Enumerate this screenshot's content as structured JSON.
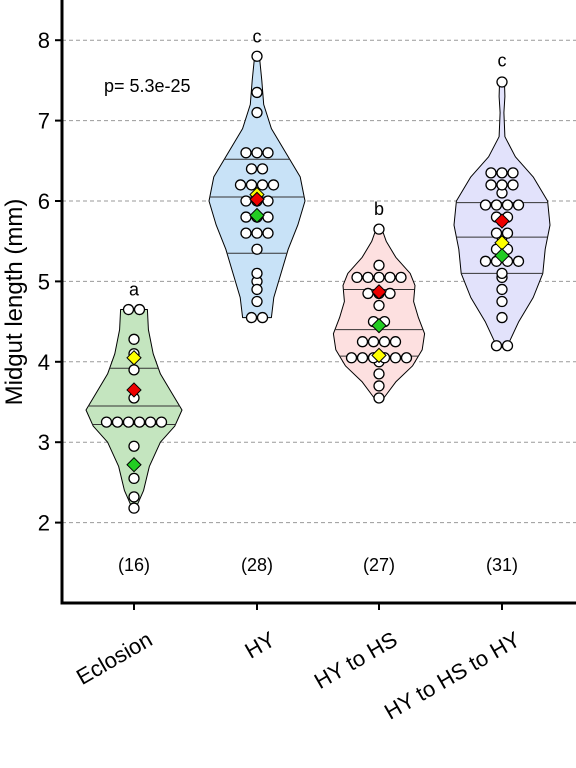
{
  "chart_data": {
    "type": "violin",
    "ylabel": "Midgut length (mm)",
    "xlabel": "",
    "ylim": [
      1.0,
      8.5
    ],
    "yticks": [
      2,
      3,
      4,
      5,
      6,
      7,
      8
    ],
    "grid": "horizontal dashed",
    "annotation": "p= 5.3e-25",
    "marker_colors": {
      "red": "#ee0000",
      "green": "#22cc22",
      "yellow": "#ffff00"
    },
    "groups": [
      {
        "label": "Eclosion",
        "n_label": "(16)",
        "letter": "a",
        "fill": "#c4e5bf",
        "range": [
          2.18,
          4.65
        ],
        "quantiles": [
          3.22,
          3.45,
          3.92
        ],
        "red": 3.65,
        "green": 2.72,
        "yellow": 4.05,
        "points": [
          2.18,
          2.32,
          2.55,
          2.95,
          3.25,
          3.25,
          3.25,
          3.25,
          3.25,
          3.25,
          3.55,
          3.9,
          4.1,
          4.28,
          4.65,
          4.65
        ],
        "shape": [
          [
            2.18,
            0.04
          ],
          [
            2.4,
            0.2
          ],
          [
            2.7,
            0.32
          ],
          [
            3.0,
            0.55
          ],
          [
            3.2,
            0.85
          ],
          [
            3.4,
            1.0
          ],
          [
            3.6,
            0.8
          ],
          [
            3.85,
            0.55
          ],
          [
            4.1,
            0.4
          ],
          [
            4.4,
            0.3
          ],
          [
            4.65,
            0.28
          ]
        ]
      },
      {
        "label": "HY",
        "n_label": "(28)",
        "letter": "c",
        "fill": "#c8e2f7",
        "range": [
          4.55,
          7.8
        ],
        "quantiles": [
          5.35,
          6.05,
          6.52
        ],
        "red": 6.02,
        "green": 5.82,
        "yellow": 6.08,
        "points": [
          4.55,
          4.55,
          4.75,
          4.9,
          5.0,
          5.1,
          5.4,
          5.6,
          5.6,
          5.6,
          5.8,
          5.8,
          5.8,
          6.0,
          6.0,
          6.0,
          6.2,
          6.2,
          6.2,
          6.2,
          6.4,
          6.4,
          6.6,
          6.6,
          6.6,
          7.1,
          7.35,
          7.8
        ],
        "shape": [
          [
            4.55,
            0.3
          ],
          [
            4.8,
            0.35
          ],
          [
            5.1,
            0.5
          ],
          [
            5.4,
            0.65
          ],
          [
            5.7,
            0.85
          ],
          [
            6.0,
            1.0
          ],
          [
            6.3,
            0.9
          ],
          [
            6.6,
            0.6
          ],
          [
            6.9,
            0.3
          ],
          [
            7.2,
            0.14
          ],
          [
            7.5,
            0.1
          ],
          [
            7.8,
            0.05
          ]
        ]
      },
      {
        "label": "HY to HS",
        "n_label": "(27)",
        "letter": "b",
        "fill": "#fde0e0",
        "range": [
          3.55,
          5.65
        ],
        "quantiles": [
          4.07,
          4.4,
          4.9
        ],
        "red": 4.87,
        "green": 4.45,
        "yellow": 4.08,
        "points": [
          3.55,
          3.7,
          3.85,
          4.0,
          4.05,
          4.05,
          4.05,
          4.05,
          4.05,
          4.05,
          4.25,
          4.25,
          4.25,
          4.25,
          4.5,
          4.5,
          4.7,
          4.85,
          4.85,
          4.85,
          5.05,
          5.05,
          5.05,
          5.05,
          5.05,
          5.2,
          5.65
        ],
        "shape": [
          [
            3.55,
            0.1
          ],
          [
            3.75,
            0.35
          ],
          [
            3.95,
            0.7
          ],
          [
            4.15,
            0.9
          ],
          [
            4.35,
            0.95
          ],
          [
            4.55,
            0.82
          ],
          [
            4.75,
            0.72
          ],
          [
            4.95,
            0.75
          ],
          [
            5.1,
            0.65
          ],
          [
            5.3,
            0.35
          ],
          [
            5.5,
            0.15
          ],
          [
            5.65,
            0.06
          ]
        ]
      },
      {
        "label": "HY to HS to HY",
        "n_label": "(31)",
        "letter": "c",
        "fill": "#e2e2fb",
        "range": [
          4.18,
          7.5
        ],
        "quantiles": [
          5.1,
          5.55,
          5.98
        ],
        "red": 5.75,
        "green": 5.32,
        "yellow": 5.48,
        "points": [
          4.2,
          4.2,
          4.55,
          4.75,
          4.9,
          5.05,
          5.1,
          5.25,
          5.25,
          5.25,
          5.25,
          5.4,
          5.4,
          5.55,
          5.6,
          5.6,
          5.75,
          5.8,
          5.8,
          5.95,
          5.95,
          5.95,
          5.95,
          6.1,
          6.2,
          6.2,
          6.2,
          6.35,
          6.35,
          6.35,
          7.48
        ],
        "shape": [
          [
            4.18,
            0.1
          ],
          [
            4.5,
            0.35
          ],
          [
            4.8,
            0.65
          ],
          [
            5.1,
            0.85
          ],
          [
            5.4,
            0.9
          ],
          [
            5.7,
            1.0
          ],
          [
            6.0,
            0.95
          ],
          [
            6.3,
            0.65
          ],
          [
            6.55,
            0.28
          ],
          [
            6.8,
            0.06
          ],
          [
            7.1,
            0.04
          ],
          [
            7.3,
            0.06
          ],
          [
            7.5,
            0.05
          ]
        ]
      }
    ]
  }
}
